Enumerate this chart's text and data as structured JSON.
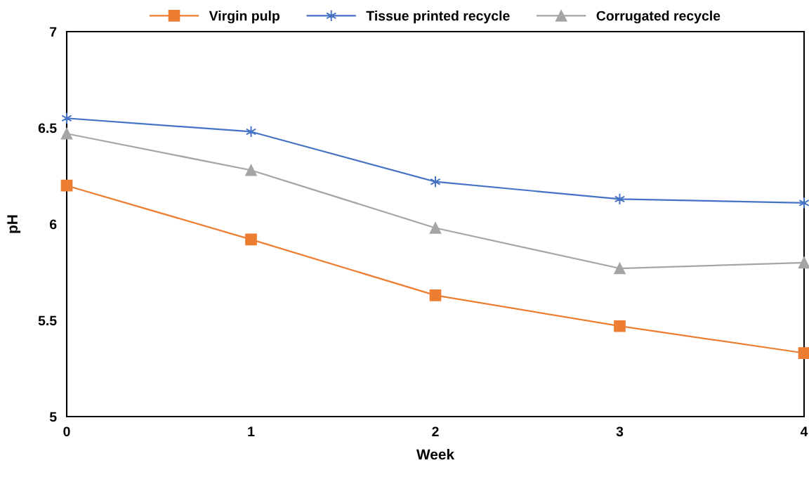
{
  "chart_data": {
    "type": "line",
    "xlabel": "Week",
    "ylabel": "pH",
    "x": [
      0,
      1,
      2,
      3,
      4
    ],
    "series": [
      {
        "name": "Virgin pulp",
        "color": "#ed7d31",
        "marker": "square",
        "values": [
          6.2,
          5.92,
          5.63,
          5.47,
          5.33
        ]
      },
      {
        "name": "Tissue printed recycle",
        "color": "#4472c4",
        "marker": "cross",
        "values": [
          6.55,
          6.48,
          6.22,
          6.13,
          6.11
        ]
      },
      {
        "name": "Corrugated recycle",
        "color": "#a5a5a5",
        "marker": "triangle",
        "values": [
          6.47,
          6.28,
          5.98,
          5.77,
          5.8
        ]
      }
    ],
    "xlim": [
      0,
      4
    ],
    "xticks": [
      0,
      1,
      2,
      3,
      4
    ],
    "ylim": [
      5,
      7
    ],
    "yticks": [
      5,
      5.5,
      6,
      6.5,
      7
    ],
    "grid": false,
    "legend": "top",
    "line_style": "solid"
  }
}
